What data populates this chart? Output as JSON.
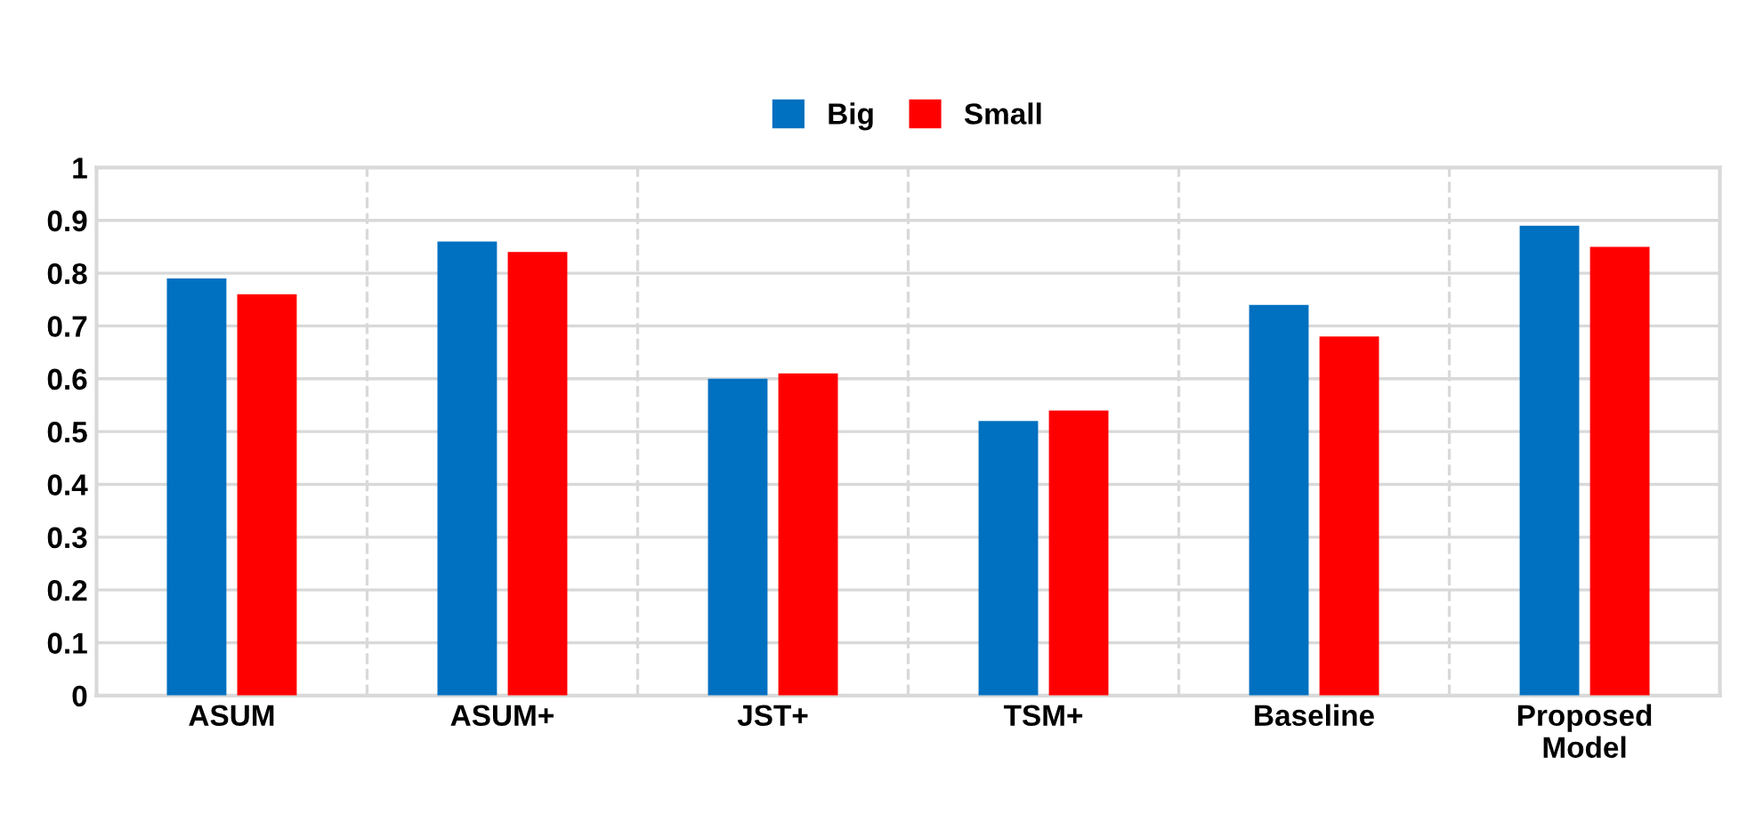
{
  "chart_data": {
    "type": "bar",
    "categories": [
      "ASUM",
      "ASUM+",
      "JST+",
      "TSM+",
      "Baseline",
      "Proposed\nModel"
    ],
    "series": [
      {
        "name": "Big",
        "color": "#0070c0",
        "values": [
          0.79,
          0.86,
          0.6,
          0.52,
          0.74,
          0.89
        ]
      },
      {
        "name": "Small",
        "color": "#ff0000",
        "values": [
          0.76,
          0.84,
          0.61,
          0.54,
          0.68,
          0.85
        ]
      }
    ],
    "ylim": [
      0,
      1
    ],
    "yticks": [
      0,
      0.1,
      0.2,
      0.3,
      0.4,
      0.5,
      0.6,
      0.7,
      0.8,
      0.9,
      1
    ],
    "grid": true,
    "legend": "top"
  }
}
